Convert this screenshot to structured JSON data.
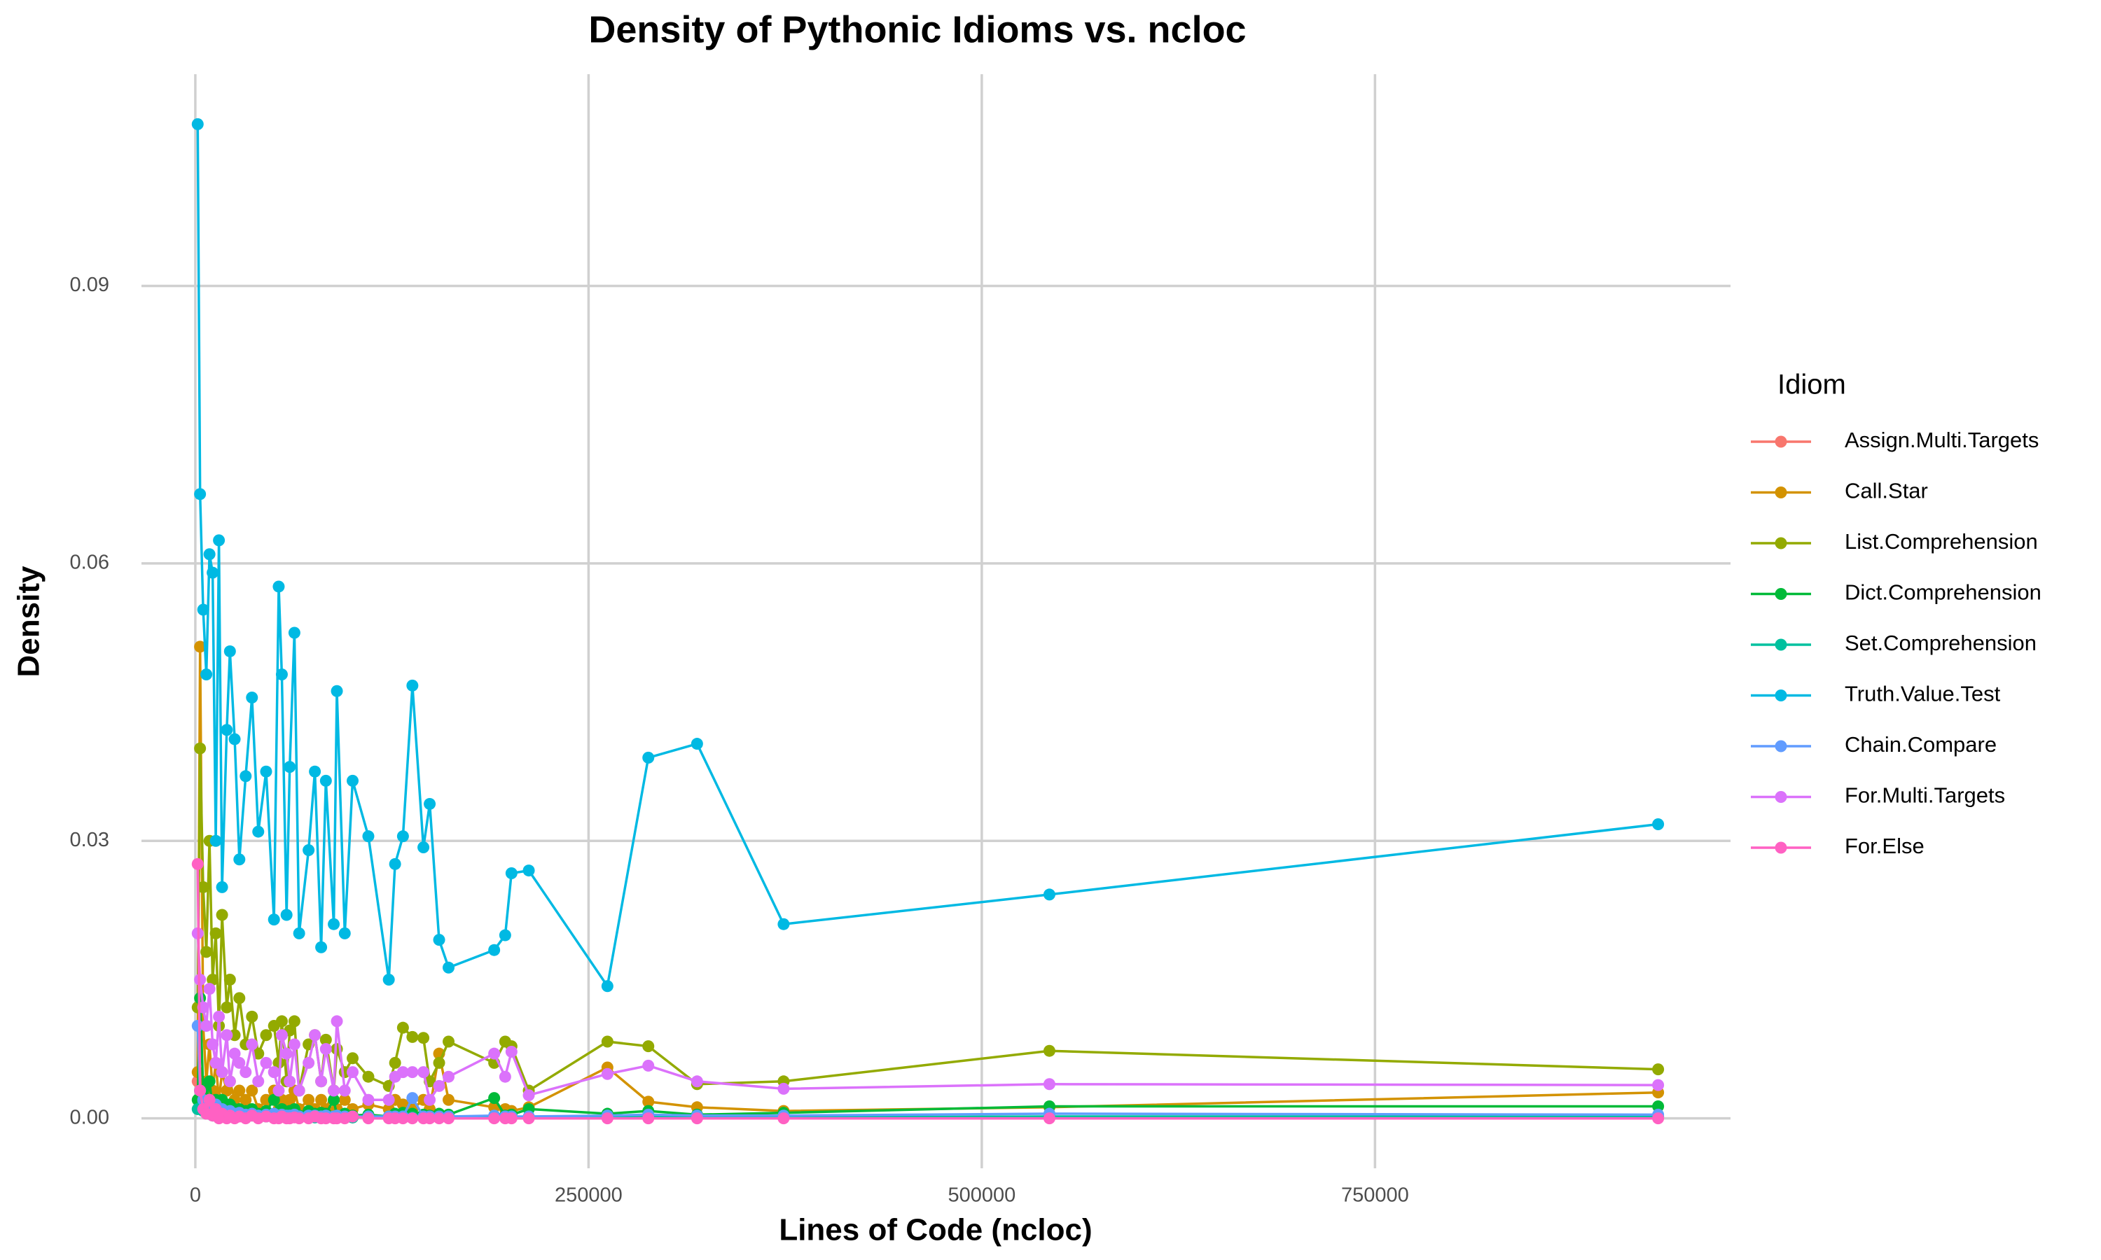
{
  "chart_data": {
    "type": "line",
    "title": "Density of Pythonic Idioms vs. ncloc",
    "x_label": "Lines of Code (ncloc)",
    "y_label": "Density",
    "legend_title": "Idiom",
    "legend": "right",
    "grid": true,
    "markers": true,
    "xlim": [
      -34247,
      976027
    ],
    "ylim": [
      -0.0054,
      0.1129
    ],
    "xticks": [
      0,
      250000,
      500000,
      750000
    ],
    "yticks": [
      {
        "value": 0,
        "label": "0.00"
      },
      0.03,
      0.06,
      0.09
    ],
    "x": [
      1500,
      3000,
      5000,
      7000,
      9000,
      11000,
      13000,
      15000,
      17000,
      20000,
      22000,
      25000,
      28000,
      32000,
      36000,
      40000,
      45000,
      50000,
      53000,
      55000,
      58000,
      60000,
      63000,
      66000,
      72000,
      76000,
      80000,
      83000,
      88000,
      90000,
      95000,
      100000,
      110000,
      123000,
      127000,
      132000,
      138000,
      145000,
      149000,
      155000,
      161000,
      190000,
      197000,
      201000,
      212000,
      262000,
      288000,
      319000,
      374000,
      543000,
      930000
    ],
    "series": [
      {
        "name": "Assign.Multi.Targets",
        "color": "#F8766D",
        "values": [
          0.004,
          0.002,
          0.001,
          0.0015,
          0.0008,
          0.001,
          0.0005,
          0.0008,
          0.0004,
          0.0006,
          0.0003,
          0.0005,
          0.0004,
          0.0003,
          0.0004,
          0.0002,
          0.0003,
          0.0004,
          0.0002,
          0.0003,
          0.0002,
          0.0002,
          0.0003,
          0.0001,
          0.0002,
          0.0002,
          0.0001,
          0.0002,
          0.0001,
          0.0002,
          0.0001,
          0.0001,
          0.0001,
          0.0001,
          0.0001,
          0.0001,
          0.0001,
          0.0001,
          0.0001,
          0.0001,
          0.0001,
          0.0001,
          0.0001,
          0.0001,
          0.0001,
          0.0001,
          0.0001,
          0.0001,
          0.0001,
          0.0001,
          0.0001
        ]
      },
      {
        "name": "Call.Star",
        "color": "#D39200",
        "values": [
          0.005,
          0.051,
          0.01,
          0.004,
          0.008,
          0.003,
          0.006,
          0.002,
          0.005,
          0.003,
          0.004,
          0.002,
          0.003,
          0.002,
          0.003,
          0.001,
          0.002,
          0.003,
          0.001,
          0.002,
          0.001,
          0.002,
          0.003,
          0.001,
          0.002,
          0.001,
          0.002,
          0.001,
          0.003,
          0.001,
          0.002,
          0.001,
          0.0015,
          0.001,
          0.002,
          0.0015,
          0.001,
          0.002,
          0.001,
          0.007,
          0.002,
          0.0012,
          0.001,
          0.0008,
          0.0012,
          0.0055,
          0.0018,
          0.0012,
          0.0008,
          0.0012,
          0.0028
        ]
      },
      {
        "name": "List.Comprehension",
        "color": "#93AA00",
        "values": [
          0.012,
          0.04,
          0.025,
          0.018,
          0.03,
          0.015,
          0.02,
          0.01,
          0.022,
          0.012,
          0.015,
          0.009,
          0.013,
          0.008,
          0.011,
          0.007,
          0.009,
          0.01,
          0.006,
          0.0105,
          0.004,
          0.0095,
          0.0105,
          0.003,
          0.008,
          0.009,
          0.004,
          0.0085,
          0.003,
          0.0075,
          0.005,
          0.0065,
          0.0045,
          0.0035,
          0.006,
          0.0098,
          0.0088,
          0.0087,
          0.004,
          0.006,
          0.0083,
          0.006,
          0.0083,
          0.0078,
          0.003,
          0.0083,
          0.0078,
          0.0037,
          0.004,
          0.0073,
          0.0053
        ]
      },
      {
        "name": "Dict.Comprehension",
        "color": "#00BA38",
        "values": [
          0.002,
          0.013,
          0.003,
          0.002,
          0.004,
          0.001,
          0.002,
          0.001,
          0.002,
          0.001,
          0.0015,
          0.001,
          0.001,
          0.0008,
          0.001,
          0.0005,
          0.0008,
          0.002,
          0.0005,
          0.001,
          0.0004,
          0.0008,
          0.001,
          0.0003,
          0.0008,
          0.0005,
          0.0006,
          0.0005,
          0.002,
          0.0003,
          0.0005,
          0.0003,
          0.0004,
          0.0002,
          0.0005,
          0.0006,
          0.0005,
          0.0004,
          0.0003,
          0.0005,
          0.0004,
          0.0022,
          0.0003,
          0.0004,
          0.001,
          0.0005,
          0.0008,
          0.0004,
          0.0006,
          0.0013,
          0.0013
        ]
      },
      {
        "name": "Set.Comprehension",
        "color": "#00C19F",
        "values": [
          0.001,
          0.003,
          0.0008,
          0.0005,
          0.001,
          0.0003,
          0.0006,
          0.0002,
          0.0005,
          0.0003,
          0.0004,
          0.0002,
          0.0003,
          0.0002,
          0.0003,
          0.0001,
          0.0002,
          0.0003,
          0.0001,
          0.0002,
          0.0001,
          0.0002,
          0.0002,
          0.0001,
          0.0002,
          0.0001,
          0.0001,
          0.0001,
          0.0002,
          0.0001,
          0.0001,
          0.0001,
          0.0001,
          0.0001,
          0.0001,
          0.0001,
          0.0001,
          0.0001,
          0.0001,
          0.0001,
          0.0001,
          0.0002,
          0.0001,
          0.0001,
          0.0001,
          0.0002,
          0.0003,
          0.0001,
          0.0001,
          0.0002,
          0.0002
        ]
      },
      {
        "name": "Truth.Value.Test",
        "color": "#00B9E3",
        "values": [
          0.1075,
          0.0675,
          0.055,
          0.048,
          0.061,
          0.059,
          0.03,
          0.0625,
          0.025,
          0.042,
          0.0505,
          0.041,
          0.028,
          0.037,
          0.0455,
          0.031,
          0.0375,
          0.0215,
          0.0575,
          0.048,
          0.022,
          0.038,
          0.0525,
          0.02,
          0.029,
          0.0375,
          0.0185,
          0.0365,
          0.021,
          0.0462,
          0.02,
          0.0365,
          0.0305,
          0.015,
          0.0275,
          0.0305,
          0.0468,
          0.0293,
          0.034,
          0.0193,
          0.0163,
          0.0182,
          0.0198,
          0.0265,
          0.0268,
          0.0143,
          0.039,
          0.0405,
          0.021,
          0.0242,
          0.0318
        ]
      },
      {
        "name": "Chain.Compare",
        "color": "#619CFF",
        "values": [
          0.01,
          0.003,
          0.002,
          0.001,
          0.002,
          0.001,
          0.0015,
          0.0008,
          0.001,
          0.0006,
          0.0008,
          0.0005,
          0.0006,
          0.0004,
          0.0005,
          0.0003,
          0.0004,
          0.0005,
          0.0003,
          0.0004,
          0.0003,
          0.0003,
          0.0004,
          0.0002,
          0.0003,
          0.0003,
          0.0002,
          0.0003,
          0.0002,
          0.0003,
          0.0002,
          0.0002,
          0.0002,
          0.0002,
          0.0002,
          0.0002,
          0.0022,
          0.0002,
          0.0002,
          0.0002,
          0.0002,
          0.0003,
          0.0002,
          0.0002,
          0.0002,
          0.0003,
          0.0004,
          0.0003,
          0.0003,
          0.0005,
          0.0004
        ]
      },
      {
        "name": "For.Multi.Targets",
        "color": "#DB72FB",
        "values": [
          0.02,
          0.015,
          0.012,
          0.01,
          0.014,
          0.008,
          0.006,
          0.011,
          0.005,
          0.009,
          0.004,
          0.007,
          0.006,
          0.005,
          0.008,
          0.004,
          0.006,
          0.005,
          0.003,
          0.009,
          0.007,
          0.004,
          0.008,
          0.003,
          0.006,
          0.009,
          0.004,
          0.0075,
          0.003,
          0.0105,
          0.003,
          0.005,
          0.002,
          0.002,
          0.0045,
          0.005,
          0.005,
          0.005,
          0.002,
          0.0035,
          0.0045,
          0.007,
          0.0045,
          0.0072,
          0.0025,
          0.0048,
          0.0057,
          0.004,
          0.0032,
          0.0037,
          0.0036
        ]
      },
      {
        "name": "For.Else",
        "color": "#FF61C3",
        "values": [
          0.0275,
          0.003,
          0.001,
          0.0005,
          0.002,
          0.0003,
          0.001,
          0,
          0.0005,
          0,
          0.0003,
          0,
          0.0002,
          0,
          0.0003,
          0,
          0.0002,
          0,
          0,
          0.0002,
          0,
          0,
          0.0001,
          0,
          0,
          0.0002,
          0,
          0,
          0,
          0,
          0,
          0.0002,
          0,
          0,
          0,
          0,
          0,
          0,
          0,
          0,
          0,
          0,
          0,
          0,
          0,
          0,
          0,
          0,
          0,
          0,
          0
        ]
      }
    ]
  }
}
